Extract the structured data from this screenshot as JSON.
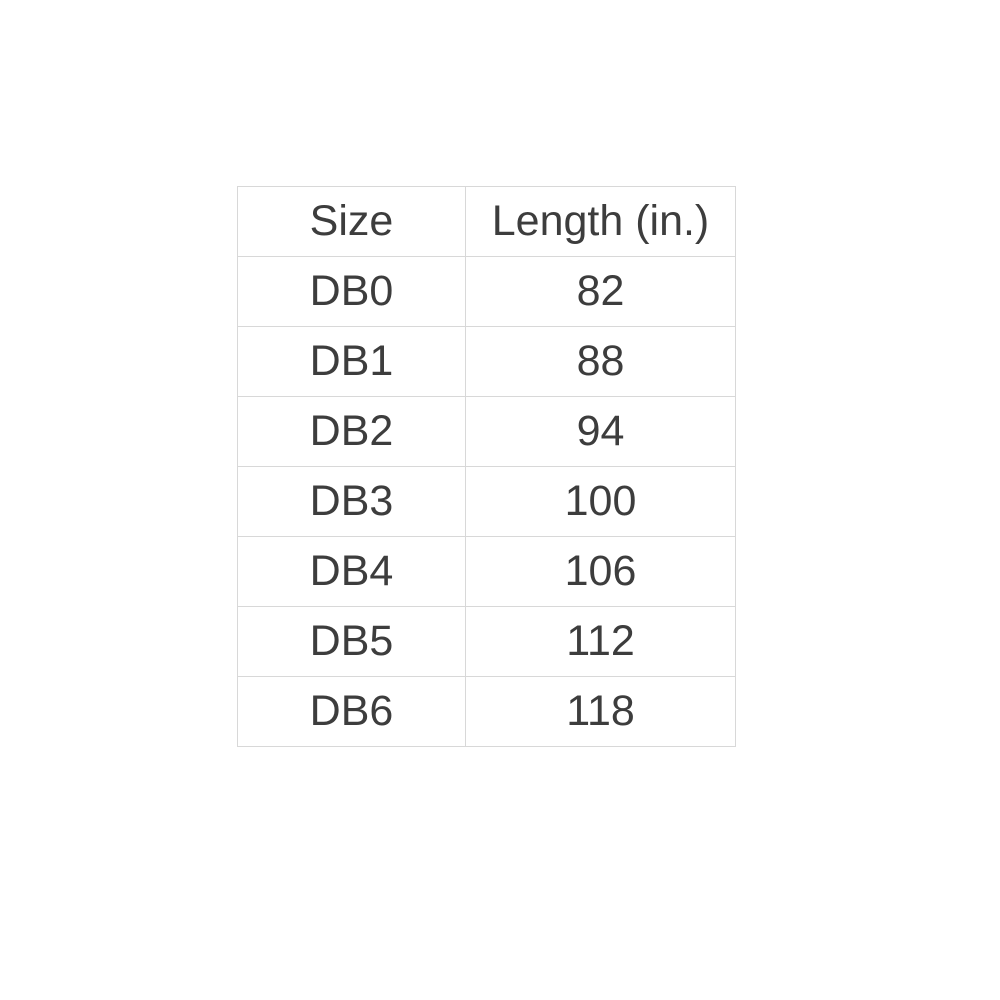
{
  "table": {
    "columns": [
      "Size",
      "Length (in.)"
    ],
    "rows": [
      {
        "size": "DB0",
        "length": "82"
      },
      {
        "size": "DB1",
        "length": "88"
      },
      {
        "size": "DB2",
        "length": "94"
      },
      {
        "size": "DB3",
        "length": "100"
      },
      {
        "size": "DB4",
        "length": "106"
      },
      {
        "size": "DB5",
        "length": "112"
      },
      {
        "size": "DB6",
        "length": "118"
      }
    ],
    "border_color": "#d8d8d8",
    "text_color": "#3d3d3d",
    "background_color": "#ffffff"
  },
  "chart_data": {
    "type": "table",
    "title": "",
    "columns": [
      "Size",
      "Length (in.)"
    ],
    "rows": [
      [
        "DB0",
        82
      ],
      [
        "DB1",
        88
      ],
      [
        "DB2",
        94
      ],
      [
        "DB3",
        100
      ],
      [
        "DB4",
        106
      ],
      [
        "DB5",
        112
      ],
      [
        "DB6",
        118
      ]
    ]
  }
}
